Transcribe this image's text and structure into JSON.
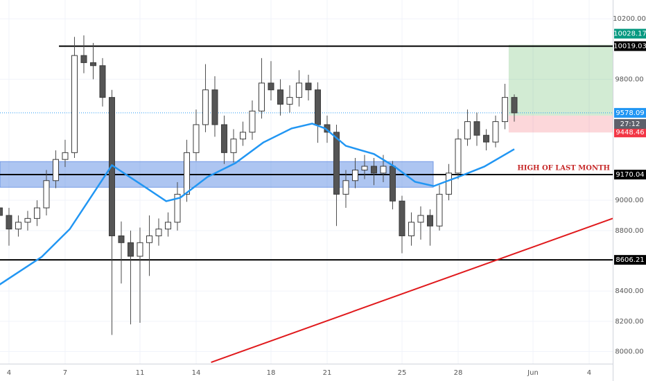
{
  "chart_data": {
    "type": "candlestick",
    "xlim": [
      -0.48,
      32.26
    ],
    "ylim": [
      7920,
      10324
    ],
    "xticks": [
      {
        "value": 0,
        "label": "4"
      },
      {
        "value": 3,
        "label": "7"
      },
      {
        "value": 7,
        "label": "11"
      },
      {
        "value": 10,
        "label": "14"
      },
      {
        "value": 14,
        "label": "18"
      },
      {
        "value": 17,
        "label": "21"
      },
      {
        "value": 21,
        "label": "25"
      },
      {
        "value": 24,
        "label": "28"
      },
      {
        "value": 28,
        "label": "Jun"
      },
      {
        "value": 31,
        "label": "4"
      }
    ],
    "yticks": [
      {
        "value": 8000,
        "label": "8000.00"
      },
      {
        "value": 8200,
        "label": "8200.00"
      },
      {
        "value": 8400,
        "label": "8400.00"
      },
      {
        "value": 8800,
        "label": "8800.00"
      },
      {
        "value": 9000,
        "label": "9000.00"
      },
      {
        "value": 9800,
        "label": "9800.00"
      },
      {
        "value": 10200,
        "label": "10200.00"
      }
    ],
    "candles": {
      "x": [
        -0.5,
        0,
        0.5,
        1,
        1.5,
        2,
        2.5,
        3,
        3.5,
        4,
        4.5,
        5,
        5.5,
        6,
        6.5,
        7,
        7.5,
        8,
        8.5,
        9,
        9.5,
        10,
        10.5,
        11,
        11.5,
        12,
        12.5,
        13,
        13.5,
        14,
        14.5,
        15,
        15.5,
        16,
        16.5,
        17,
        17.5,
        18,
        18.5,
        19,
        19.5,
        20,
        20.5,
        21,
        21.5,
        22,
        22.5,
        23,
        23.5,
        24,
        24.5,
        25,
        25.5,
        26,
        26.5,
        27
      ],
      "open": [
        8950,
        8900,
        8810,
        8855,
        8880,
        8950,
        9130,
        9270,
        9315,
        9957,
        9910,
        9890,
        9680,
        8765,
        8720,
        8630,
        8720,
        8765,
        8810,
        8855,
        9040,
        9315,
        9500,
        9730,
        9500,
        9315,
        9405,
        9450,
        9590,
        9775,
        9730,
        9635,
        9680,
        9775,
        9730,
        9500,
        9450,
        9040,
        9130,
        9200,
        9225,
        9180,
        9225,
        8995,
        8765,
        8855,
        8900,
        8830,
        9040,
        9180,
        9405,
        9520,
        9430,
        9385,
        9520,
        9680
      ],
      "high": [
        9000,
        8950,
        8900,
        8930,
        9000,
        9200,
        9330,
        9400,
        10080,
        10090,
        10040,
        9940,
        9730,
        8860,
        8800,
        8820,
        8900,
        8880,
        8920,
        9120,
        9400,
        9600,
        9900,
        9820,
        9560,
        9470,
        9520,
        9660,
        9940,
        9920,
        9800,
        9760,
        9860,
        9830,
        9780,
        9560,
        9500,
        9200,
        9280,
        9300,
        9280,
        9300,
        9260,
        9030,
        8920,
        8960,
        8940,
        9100,
        9240,
        9470,
        9600,
        9580,
        9470,
        9560,
        9770,
        9700
      ],
      "low": [
        8850,
        8700,
        8760,
        8800,
        8830,
        8900,
        9080,
        9220,
        9280,
        9840,
        9800,
        9620,
        8110,
        8450,
        8180,
        8190,
        8500,
        8700,
        8760,
        8800,
        8990,
        9260,
        9450,
        9420,
        9240,
        9250,
        9360,
        9400,
        9540,
        9660,
        9560,
        9580,
        9620,
        9660,
        9380,
        9380,
        8830,
        8950,
        9080,
        9140,
        9100,
        9120,
        8940,
        8650,
        8700,
        8740,
        8700,
        8800,
        9000,
        9140,
        9360,
        9360,
        9330,
        9350,
        9470,
        9520
      ],
      "close": [
        8900,
        8810,
        8855,
        8880,
        8950,
        9130,
        9270,
        9315,
        9957,
        9910,
        9890,
        9680,
        8765,
        8720,
        8630,
        8720,
        8765,
        8810,
        8855,
        9040,
        9315,
        9500,
        9730,
        9500,
        9315,
        9405,
        9450,
        9590,
        9775,
        9730,
        9635,
        9680,
        9775,
        9730,
        9500,
        9450,
        9040,
        9130,
        9200,
        9225,
        9180,
        9225,
        8995,
        8765,
        8855,
        8900,
        8830,
        9040,
        9180,
        9405,
        9520,
        9430,
        9385,
        9520,
        9680,
        9578
      ]
    },
    "moving_average": {
      "color": "#2196f3",
      "x": [
        -0.5,
        1.75,
        3.25,
        5.5,
        7.3,
        8.4,
        9.15,
        10.6,
        12.1,
        13.6,
        15.1,
        16.2,
        16.9,
        18.0,
        19.5,
        20.6,
        21.7,
        22.7,
        24.0,
        25.4,
        27.0
      ],
      "values": [
        8443,
        8626,
        8810,
        9232,
        9085,
        8994,
        9017,
        9154,
        9246,
        9383,
        9475,
        9507,
        9475,
        9360,
        9306,
        9223,
        9122,
        9094,
        9154,
        9223,
        9338
      ]
    },
    "zone": {
      "low": 9086,
      "high": 9256,
      "to": 22.67,
      "color": "#4a7fe0"
    },
    "levels": [
      {
        "value": 10019.03,
        "from": 2.67
      },
      {
        "value": 9170.04,
        "from": -0.48
      },
      {
        "value": 8606.21,
        "from": -0.48
      }
    ],
    "trendline": {
      "color": "#e0191c",
      "x": [
        10.8,
        32.26
      ],
      "values": [
        7929,
        8880
      ]
    },
    "annotation": "HIGH OF LAST MONTH",
    "current_price": 9578.09,
    "countdown": "27:12",
    "position": {
      "from": 26.7,
      "entry": 9560,
      "target": 10028.17,
      "stop": 9448.46
    }
  }
}
